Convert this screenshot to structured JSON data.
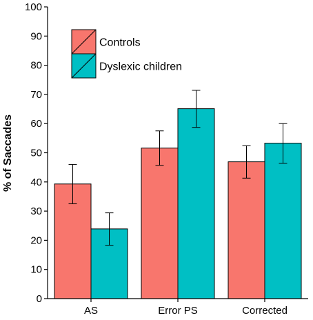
{
  "chart_data": {
    "type": "bar",
    "categories": [
      "AS",
      "Error PS",
      "Corrected"
    ],
    "series": [
      {
        "name": "Controls",
        "color": "#F8766D",
        "values": [
          39.3,
          51.6,
          46.9
        ],
        "error_low": [
          32.5,
          45.7,
          41.3
        ],
        "error_high": [
          46.0,
          57.5,
          52.4
        ]
      },
      {
        "name": "Dyslexic children",
        "color": "#00BFC4",
        "values": [
          23.9,
          65.1,
          53.3
        ],
        "error_low": [
          18.3,
          58.7,
          46.4
        ],
        "error_high": [
          29.4,
          71.4,
          60.0
        ]
      }
    ],
    "ylabel": "% of Saccades",
    "xlabel": "",
    "ylim": [
      0,
      100
    ],
    "yticks": [
      0,
      10,
      20,
      30,
      40,
      50,
      60,
      70,
      80,
      90,
      100
    ],
    "grid": false,
    "legend_position": "top-left"
  }
}
